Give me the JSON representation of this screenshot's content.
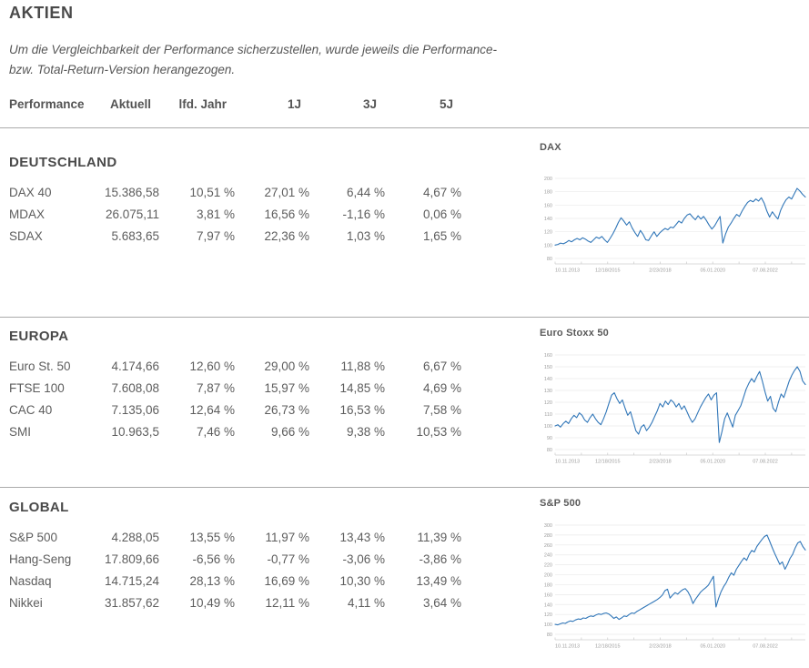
{
  "page": {
    "title": "AKTIEN",
    "description_line1": "Um die Vergleichbarkeit der Performance sicherzustellen, wurde jeweils die Performance-",
    "description_line2": "bzw. Total-Return-Version herangezogen."
  },
  "table": {
    "headers": [
      "Performance",
      "Aktuell",
      "lfd. Jahr",
      "1J",
      "3J",
      "5J"
    ]
  },
  "sections": [
    {
      "title": "DEUTSCHLAND",
      "rows": [
        {
          "cells": [
            "DAX 40",
            "15.386,58",
            "10,51 %",
            "27,01 %",
            "6,44 %",
            "4,67 %"
          ]
        },
        {
          "cells": [
            "MDAX",
            "26.075,11",
            "3,81 %",
            "16,56 %",
            "-1,16 %",
            "0,06 %"
          ]
        },
        {
          "cells": [
            "SDAX",
            "5.683,65",
            "7,97 %",
            "22,36 %",
            "1,03 %",
            "1,65 %"
          ]
        }
      ]
    },
    {
      "title": "EUROPA",
      "rows": [
        {
          "cells": [
            "Euro St. 50",
            "4.174,66",
            "12,60 %",
            "29,00 %",
            "11,88 %",
            "6,67 %"
          ]
        },
        {
          "cells": [
            "FTSE 100",
            "7.608,08",
            "7,87 %",
            "15,97 %",
            "14,85 %",
            "4,69 %"
          ]
        },
        {
          "cells": [
            "CAC 40",
            "7.135,06",
            "12,64 %",
            "26,73 %",
            "16,53 %",
            "7,58 %"
          ]
        },
        {
          "cells": [
            "SMI",
            "10.963,5",
            "7,46 %",
            "9,66 %",
            "9,38 %",
            "10,53 %"
          ]
        }
      ]
    },
    {
      "title": "GLOBAL",
      "rows": [
        {
          "cells": [
            "S&P 500",
            "4.288,05",
            "13,55 %",
            "11,97 %",
            "13,43 %",
            "11,39 %"
          ]
        },
        {
          "cells": [
            "Hang-Seng",
            "17.809,66",
            "-6,56 %",
            "-0,77 %",
            "-3,06 %",
            "-3,86 %"
          ]
        },
        {
          "cells": [
            "Nasdaq",
            "14.715,24",
            "28,13 %",
            "16,69 %",
            "10,30 %",
            "13,49 %"
          ]
        },
        {
          "cells": [
            "Nikkei",
            "31.857,62",
            "10,49 %",
            "12,11 %",
            "4,11 %",
            "3,64 %"
          ]
        }
      ]
    }
  ],
  "colors": {
    "line_blue": "#3076b8",
    "grid": "#eaeaea",
    "axis": "#cfcfcf",
    "tick_label": "#9d9d9d",
    "heading": "#4a4a4a",
    "body_text": "#5d5d5d",
    "divider": "#ababab"
  },
  "chart_data": [
    {
      "type": "line",
      "title": "DAX",
      "x_labels": [
        "10.11.2013",
        "12/18/2015",
        "2/23/2018",
        "05.01.2020",
        "07.08.2022"
      ],
      "ylim": [
        80,
        200
      ],
      "ytick_step": 20,
      "grid": true,
      "legend": false,
      "line_color": "#3076b8",
      "values": [
        100,
        101,
        103,
        102,
        104,
        107,
        105,
        108,
        110,
        108,
        111,
        109,
        106,
        104,
        108,
        112,
        110,
        113,
        108,
        104,
        110,
        117,
        125,
        134,
        141,
        136,
        130,
        135,
        126,
        119,
        113,
        122,
        116,
        108,
        107,
        114,
        120,
        113,
        118,
        122,
        125,
        123,
        127,
        126,
        131,
        136,
        133,
        140,
        145,
        147,
        142,
        138,
        144,
        139,
        143,
        137,
        130,
        124,
        129,
        136,
        143,
        103,
        117,
        127,
        133,
        140,
        146,
        143,
        151,
        158,
        164,
        167,
        165,
        169,
        166,
        171,
        163,
        151,
        142,
        150,
        144,
        139,
        152,
        161,
        168,
        172,
        169,
        177,
        185,
        181,
        176,
        172
      ]
    },
    {
      "type": "line",
      "title": "Euro Stoxx 50",
      "x_labels": [
        "10.11.2013",
        "12/18/2015",
        "2/23/2018",
        "05.01.2020",
        "07.08.2022"
      ],
      "ylim": [
        80,
        160
      ],
      "ytick_step": 10,
      "grid": true,
      "legend": false,
      "line_color": "#3076b8",
      "values": [
        100,
        101,
        99,
        102,
        104,
        102,
        106,
        109,
        107,
        111,
        109,
        105,
        103,
        107,
        110,
        106,
        103,
        101,
        106,
        112,
        119,
        126,
        128,
        123,
        119,
        122,
        115,
        109,
        112,
        104,
        96,
        93,
        99,
        101,
        96,
        99,
        103,
        108,
        113,
        119,
        116,
        121,
        118,
        122,
        120,
        116,
        119,
        114,
        117,
        112,
        107,
        103,
        106,
        111,
        116,
        120,
        124,
        127,
        122,
        126,
        128,
        86,
        95,
        106,
        111,
        105,
        99,
        109,
        113,
        117,
        124,
        131,
        136,
        140,
        137,
        142,
        146,
        138,
        129,
        121,
        125,
        115,
        112,
        120,
        127,
        124,
        131,
        138,
        143,
        147,
        150,
        146,
        138,
        135
      ]
    },
    {
      "type": "line",
      "title": "S&P 500",
      "x_labels": [
        "10.11.2013",
        "12/18/2015",
        "2/23/2018",
        "05.01.2020",
        "07.08.2022"
      ],
      "ylim": [
        80,
        300
      ],
      "ytick_step": 20,
      "grid": true,
      "legend": false,
      "line_color": "#3076b8",
      "values": [
        100,
        99,
        101,
        103,
        102,
        105,
        107,
        106,
        109,
        111,
        110,
        113,
        112,
        115,
        117,
        116,
        119,
        121,
        120,
        122,
        123,
        121,
        117,
        112,
        115,
        110,
        113,
        117,
        116,
        120,
        123,
        122,
        126,
        129,
        132,
        135,
        138,
        141,
        144,
        147,
        150,
        154,
        159,
        168,
        171,
        153,
        159,
        164,
        161,
        166,
        170,
        172,
        166,
        156,
        142,
        151,
        158,
        165,
        170,
        174,
        179,
        188,
        197,
        135,
        152,
        166,
        176,
        184,
        195,
        204,
        199,
        211,
        219,
        227,
        234,
        229,
        241,
        249,
        246,
        257,
        264,
        271,
        277,
        280,
        268,
        255,
        243,
        232,
        221,
        226,
        211,
        221,
        233,
        241,
        254,
        264,
        267,
        257,
        250
      ]
    }
  ]
}
